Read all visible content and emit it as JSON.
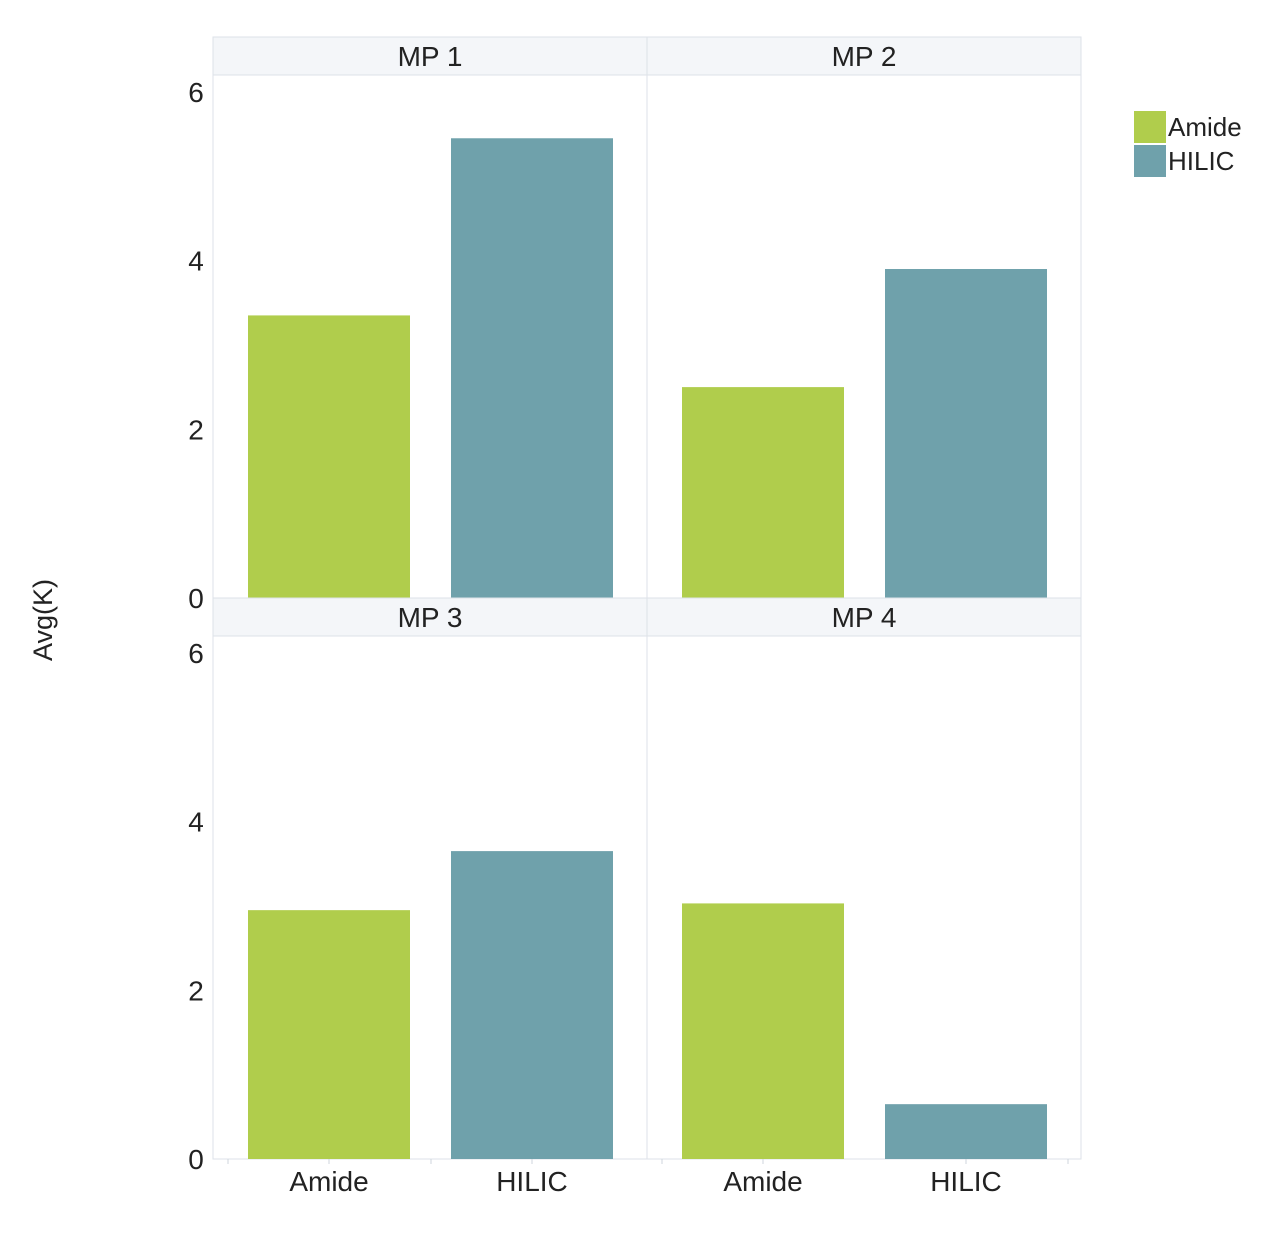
{
  "chart_data": {
    "type": "bar",
    "layout": "faceted 2x2",
    "ylabel": "Avg(K)",
    "xlabel": "",
    "ylim": [
      0,
      6.2
    ],
    "yticks": [
      0,
      2,
      4,
      6
    ],
    "categories": [
      "Amide",
      "HILIC"
    ],
    "colors": {
      "Amide": "#b0cd4c",
      "HILIC": "#6fa1ab"
    },
    "legend": {
      "position": "right",
      "entries": [
        "Amide",
        "HILIC"
      ]
    },
    "grid": false,
    "panels": [
      {
        "title": "MP 1",
        "values": [
          3.35,
          5.45
        ]
      },
      {
        "title": "MP 2",
        "values": [
          2.5,
          3.9
        ]
      },
      {
        "title": "MP 3",
        "values": [
          2.95,
          3.65
        ]
      },
      {
        "title": "MP 4",
        "values": [
          3.03,
          0.65
        ]
      }
    ]
  }
}
